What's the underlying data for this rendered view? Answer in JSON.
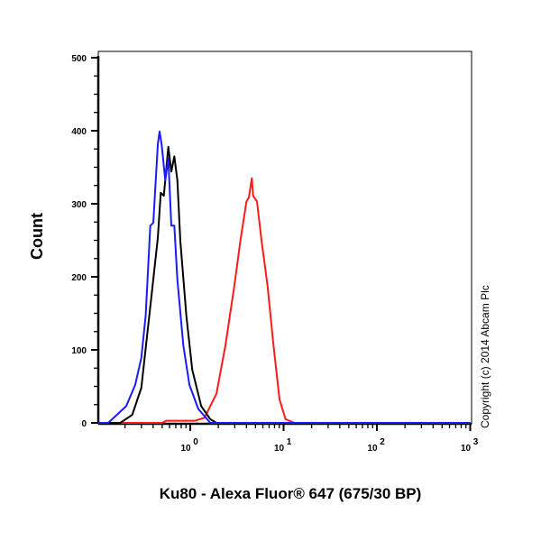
{
  "chart_data": {
    "type": "line",
    "title": "",
    "xlabel": "Ku80 - Alexa Fluor® 647 (675/30 BP)",
    "ylabel": "Count",
    "xscale": "log",
    "xlim": [
      0.1,
      1000
    ],
    "ylim": [
      0,
      500
    ],
    "yticks": [
      0,
      100,
      200,
      300,
      400,
      500
    ],
    "xticks": [
      {
        "base": "10",
        "exp": "0",
        "value": 1
      },
      {
        "base": "10",
        "exp": "1",
        "value": 10
      },
      {
        "base": "10",
        "exp": "2",
        "value": 100
      },
      {
        "base": "10",
        "exp": "3",
        "value": 1000
      }
    ],
    "grid": false,
    "annotation": "Copyright (c) 2014 Abcam Plc",
    "series": [
      {
        "name": "red",
        "color": "#ff1a1a",
        "x": [
          0.1,
          0.5,
          0.55,
          1.13,
          1.42,
          1.91,
          2.38,
          2.97,
          3.45,
          4.0,
          4.25,
          4.57,
          4.71,
          5.19,
          5.8,
          6.73,
          7.8,
          9.05,
          10.5,
          13.1,
          1000
        ],
        "y": [
          0,
          0,
          3,
          3,
          7,
          40,
          106,
          188,
          250,
          303,
          309,
          335,
          311,
          303,
          250,
          188,
          106,
          32,
          5,
          0,
          0
        ]
      },
      {
        "name": "black",
        "color": "#000000",
        "x": [
          0.1,
          0.178,
          0.239,
          0.299,
          0.373,
          0.449,
          0.483,
          0.521,
          0.582,
          0.627,
          0.675,
          0.728,
          0.783,
          0.908,
          1.05,
          1.31,
          1.64,
          1.91,
          1000
        ],
        "y": [
          0,
          0,
          11,
          48,
          159,
          253,
          315,
          311,
          378,
          344,
          365,
          332,
          249,
          147,
          73,
          23,
          5,
          0,
          0
        ]
      },
      {
        "name": "blue",
        "color": "#1a1aff",
        "x": [
          0.1,
          0.132,
          0.206,
          0.257,
          0.299,
          0.333,
          0.373,
          0.402,
          0.449,
          0.469,
          0.494,
          0.54,
          0.582,
          0.627,
          0.675,
          0.728,
          0.843,
          0.98,
          1.22,
          1.64,
          1000
        ],
        "y": [
          0,
          0,
          23,
          52,
          89,
          147,
          270,
          274,
          381,
          399,
          381,
          332,
          362,
          270,
          270,
          196,
          106,
          52,
          19,
          0,
          0
        ]
      }
    ]
  }
}
